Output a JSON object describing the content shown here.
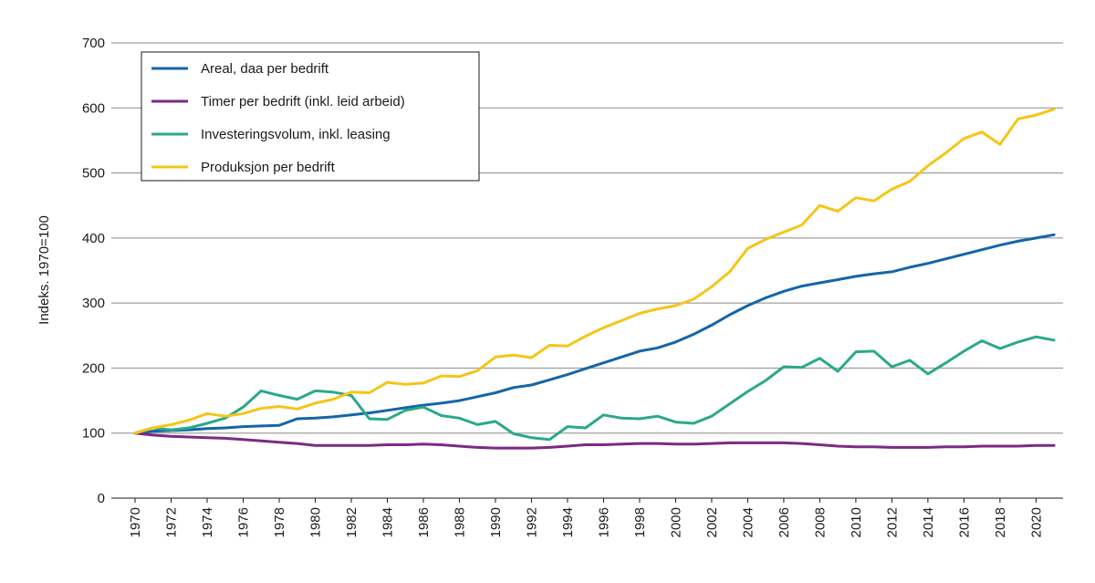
{
  "chart_data": {
    "type": "line",
    "title": "",
    "xlabel": "",
    "ylabel": "Indeks. 1970=100",
    "ylim": [
      0,
      700
    ],
    "xlim": [
      1970,
      2021
    ],
    "y_ticks": [
      "0",
      "100",
      "200",
      "300",
      "400",
      "500",
      "600",
      "700"
    ],
    "x_ticks": [
      "1970",
      "1972",
      "1974",
      "1976",
      "1978",
      "1980",
      "1982",
      "1984",
      "1986",
      "1988",
      "1990",
      "1992",
      "1994",
      "1996",
      "1998",
      "2000",
      "2002",
      "2004",
      "2006",
      "2008",
      "2010",
      "2012",
      "2014",
      "2016",
      "2018",
      "2020"
    ],
    "grid": true,
    "legend_position": "top-left",
    "x": [
      1970,
      1971,
      1972,
      1973,
      1974,
      1975,
      1976,
      1977,
      1978,
      1979,
      1980,
      1981,
      1982,
      1983,
      1984,
      1985,
      1986,
      1987,
      1988,
      1989,
      1990,
      1991,
      1992,
      1993,
      1994,
      1995,
      1996,
      1997,
      1998,
      1999,
      2000,
      2001,
      2002,
      2003,
      2004,
      2005,
      2006,
      2007,
      2008,
      2009,
      2010,
      2011,
      2012,
      2013,
      2014,
      2015,
      2016,
      2017,
      2018,
      2019,
      2020,
      2021
    ],
    "series": [
      {
        "name": "Areal, daa per bedrift",
        "color": "#1565a8",
        "values": [
          100,
          103,
          104,
          105,
          107,
          108,
          110,
          111,
          112,
          122,
          123,
          125,
          128,
          131,
          135,
          139,
          143,
          146,
          150,
          156,
          162,
          170,
          174,
          182,
          190,
          199,
          208,
          217,
          226,
          231,
          240,
          252,
          266,
          282,
          296,
          308,
          318,
          326,
          331,
          336,
          341,
          345,
          348,
          355,
          361,
          368,
          375,
          382,
          389,
          395,
          400,
          405
        ]
      },
      {
        "name": "Timer per bedrift (inkl. leid arbeid)",
        "color": "#7b2a85",
        "values": [
          100,
          97,
          95,
          94,
          93,
          92,
          90,
          88,
          86,
          84,
          81,
          81,
          81,
          81,
          82,
          82,
          83,
          82,
          80,
          78,
          77,
          77,
          77,
          78,
          80,
          82,
          82,
          83,
          84,
          84,
          83,
          83,
          84,
          85,
          85,
          85,
          85,
          84,
          82,
          80,
          79,
          79,
          78,
          78,
          78,
          79,
          79,
          80,
          80,
          80,
          81,
          81
        ]
      },
      {
        "name": "Investeringsvolum, inkl. leasing",
        "color": "#2aa98a",
        "values": [
          100,
          108,
          105,
          108,
          115,
          123,
          140,
          165,
          158,
          152,
          165,
          163,
          158,
          122,
          121,
          135,
          140,
          127,
          123,
          113,
          118,
          99,
          93,
          90,
          110,
          108,
          128,
          123,
          122,
          126,
          117,
          115,
          126,
          145,
          164,
          181,
          202,
          201,
          215,
          195,
          225,
          226,
          202,
          212,
          191,
          208,
          226,
          242,
          230,
          240,
          248,
          243
        ]
      },
      {
        "name": "Produksjon per bedrift",
        "color": "#f5c518",
        "values": [
          100,
          108,
          113,
          120,
          130,
          126,
          130,
          138,
          141,
          137,
          146,
          152,
          163,
          162,
          178,
          175,
          177,
          188,
          187,
          196,
          217,
          220,
          216,
          235,
          234,
          249,
          262,
          273,
          284,
          291,
          296,
          306,
          325,
          348,
          384,
          398,
          409,
          420,
          450,
          441,
          462,
          457,
          475,
          487,
          511,
          531,
          553,
          563,
          544,
          583,
          589,
          598
        ]
      }
    ]
  }
}
